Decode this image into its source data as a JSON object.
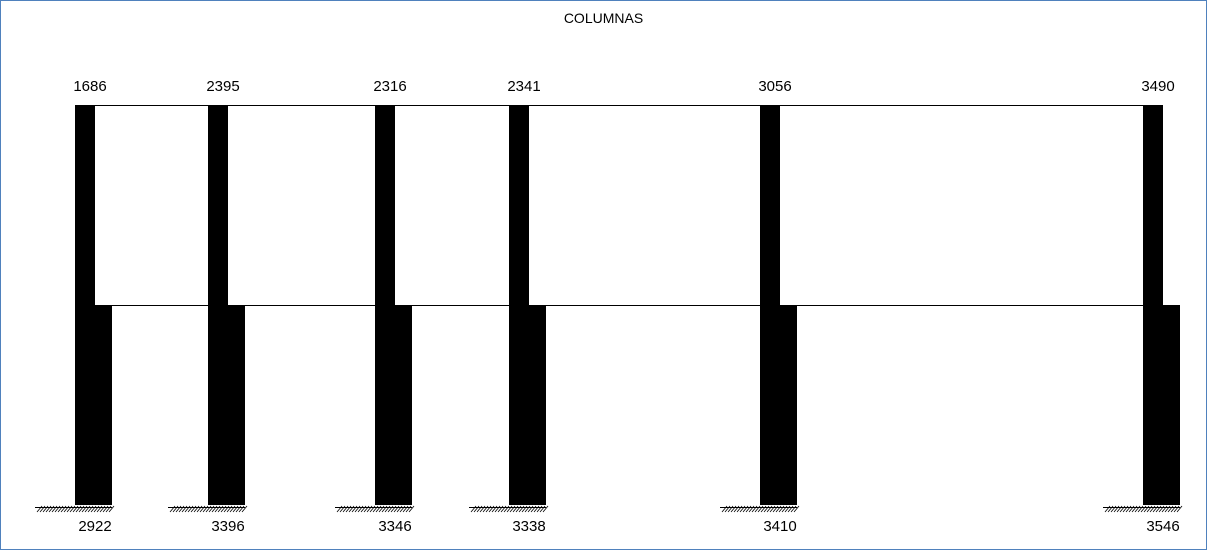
{
  "title": "COLUMNAS",
  "columns": [
    {
      "top_value": "1686",
      "bottom_value": "2922"
    },
    {
      "top_value": "2395",
      "bottom_value": "3396"
    },
    {
      "top_value": "2316",
      "bottom_value": "3346"
    },
    {
      "top_value": "2341",
      "bottom_value": "3338"
    },
    {
      "top_value": "3056",
      "bottom_value": "3410"
    },
    {
      "top_value": "3490",
      "bottom_value": "3546"
    }
  ],
  "colors": {
    "frame_border": "#4f81bd",
    "fill": "#000000",
    "line": "#000000"
  }
}
